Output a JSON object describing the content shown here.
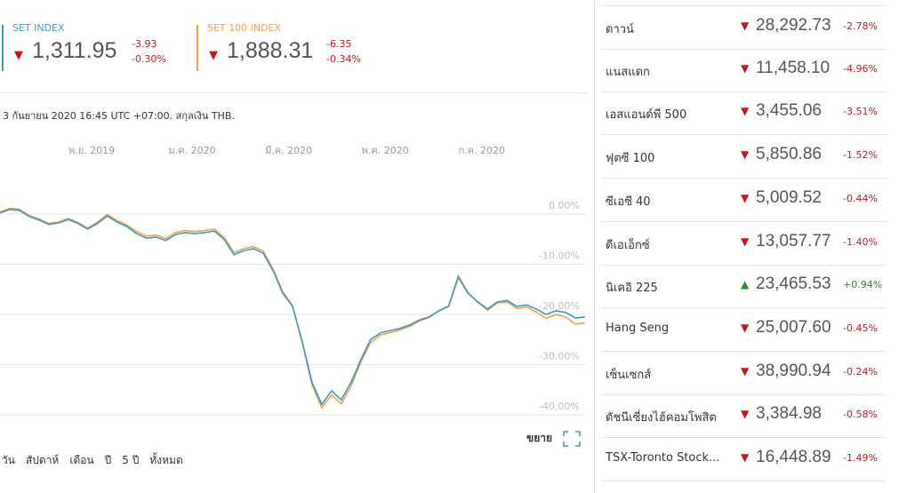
{
  "indices": [
    {
      "name": "SET INDEX",
      "value": "1,311.95",
      "change": "-3.93",
      "percent": "-0.30%"
    },
    {
      "name": "SET 100 INDEX",
      "value": "1,888.31",
      "change": "-6.35",
      "percent": "-0.34%"
    }
  ],
  "note": "3 กันยายน 2020 16:45 UTC +07:00. สกุลเงิน THB.",
  "chart_data": {
    "type": "line",
    "x": [
      0,
      1,
      2,
      3,
      4,
      5,
      6,
      7,
      8,
      9,
      10,
      11,
      12,
      13,
      14,
      15,
      16,
      17,
      18,
      19,
      20,
      21,
      22,
      23,
      24,
      25,
      26,
      27,
      28,
      29,
      30,
      31,
      32,
      33,
      34,
      35,
      36,
      37,
      38,
      39,
      40,
      41,
      42,
      43,
      44,
      45,
      46,
      47,
      48,
      49,
      50,
      51,
      52,
      53,
      54,
      55,
      56,
      57,
      58,
      59,
      60
    ],
    "series": [
      {
        "name": "SET INDEX",
        "color": "#3a9bbf",
        "values": [
          0.2,
          0.9,
          0.7,
          -0.5,
          -1.2,
          -2.1,
          -1.8,
          -1.1,
          -1.9,
          -3.0,
          -1.9,
          -0.4,
          -1.6,
          -2.5,
          -3.9,
          -4.8,
          -4.6,
          -5.3,
          -4.1,
          -3.7,
          -3.9,
          -3.7,
          -3.4,
          -5.1,
          -8.1,
          -7.3,
          -6.9,
          -7.8,
          -11.3,
          -15.8,
          -18.4,
          -25.5,
          -33.5,
          -37.9,
          -35.2,
          -37.0,
          -33.5,
          -29.0,
          -25.0,
          -23.7,
          -23.2,
          -22.8,
          -22.1,
          -21.1,
          -20.5,
          -19.3,
          -18.4,
          -12.6,
          -15.8,
          -17.5,
          -18.9,
          -17.5,
          -17.2,
          -18.4,
          -18.1,
          -18.9,
          -20.0,
          -19.3,
          -19.6,
          -20.7,
          -20.5
        ]
      },
      {
        "name": "SET 100 INDEX",
        "color": "#f4a14a",
        "values": [
          0.4,
          1.1,
          0.9,
          -0.3,
          -1.0,
          -1.9,
          -1.6,
          -0.9,
          -1.7,
          -2.8,
          -1.6,
          -0.1,
          -1.3,
          -2.2,
          -3.5,
          -4.4,
          -4.2,
          -4.9,
          -3.7,
          -3.3,
          -3.5,
          -3.3,
          -3.0,
          -4.7,
          -7.7,
          -6.9,
          -6.5,
          -7.4,
          -11.0,
          -15.5,
          -18.3,
          -25.6,
          -34.0,
          -38.6,
          -36.0,
          -37.8,
          -34.2,
          -29.5,
          -25.6,
          -24.1,
          -23.6,
          -23.1,
          -22.4,
          -21.3,
          -20.6,
          -19.3,
          -18.3,
          -12.3,
          -15.7,
          -17.6,
          -19.2,
          -17.7,
          -17.5,
          -18.8,
          -18.5,
          -19.5,
          -20.8,
          -20.0,
          -20.5,
          -21.9,
          -21.7
        ]
      }
    ],
    "xlim": [
      0,
      60
    ],
    "xticks": [
      {
        "value": 9.4,
        "label": "พ.ย. 2019"
      },
      {
        "value": 19.7,
        "label": "ม.ค. 2020"
      },
      {
        "value": 29.6,
        "label": "มี.ค. 2020"
      },
      {
        "value": 39.5,
        "label": "พ.ค. 2020"
      },
      {
        "value": 49.4,
        "label": "ก.ค. 2020"
      }
    ],
    "ylim": [
      -40.5,
      8.1
    ],
    "yticks": [
      {
        "value": 0,
        "label": "0.00%"
      },
      {
        "value": -10,
        "label": "-10.00%"
      },
      {
        "value": -20,
        "label": "-20.00%"
      },
      {
        "value": -30,
        "label": "-30.00%"
      },
      {
        "value": -40,
        "label": "-40.00%"
      }
    ],
    "grid": true
  },
  "expand": "ขยาย",
  "ranges": [
    "วัน",
    "สัปดาห์",
    "เดือน",
    "ปี",
    "5 ปี",
    "ทั้งหมด"
  ],
  "markets": [
    {
      "name": "ดาวน์",
      "value": "28,292.73",
      "percent": "-2.78%"
    },
    {
      "name": "แนสแดก",
      "value": "11,458.10",
      "percent": "-4.96%"
    },
    {
      "name": "เอสแอนด์พี 500",
      "value": "3,455.06",
      "percent": "-3.51%"
    },
    {
      "name": "ฟุตซี 100",
      "value": "5,850.86",
      "percent": "-1.52%"
    },
    {
      "name": "ซีเอซี 40",
      "value": "5,009.52",
      "percent": "-0.44%"
    },
    {
      "name": "ดีเอเอ็กซ์",
      "value": "13,057.77",
      "percent": "-1.40%"
    },
    {
      "name": "นิเคอิ 225",
      "value": "23,465.53",
      "percent": "+0.94%"
    },
    {
      "name": "Hang Seng",
      "value": "25,007.60",
      "percent": "-0.45%"
    },
    {
      "name": "เซ็นเซกส์",
      "value": "38,990.94",
      "percent": "-0.24%"
    },
    {
      "name": "ดัชนีเซี่ยงไฮ้คอมโพสิต",
      "value": "3,384.98",
      "percent": "-0.58%"
    },
    {
      "name": "TSX-Toronto Stock...",
      "value": "16,448.89",
      "percent": "-1.49%"
    }
  ]
}
